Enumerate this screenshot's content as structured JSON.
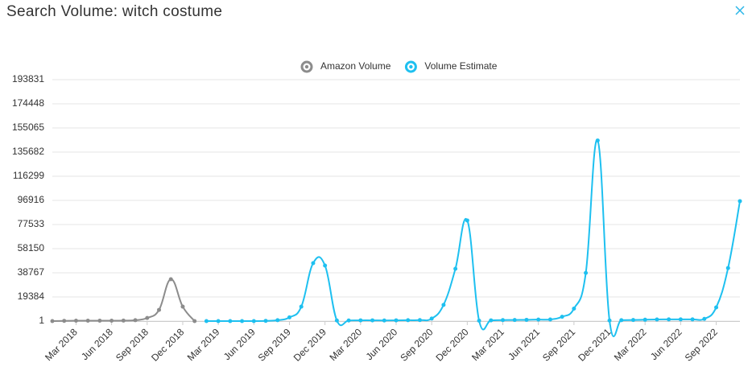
{
  "chart_data": {
    "type": "line",
    "title": "Search Volume: witch costume",
    "categories": [
      null,
      null,
      "Mar 2018",
      null,
      null,
      "Jun 2018",
      null,
      null,
      "Sep 2018",
      null,
      null,
      "Dec 2018",
      null,
      null,
      "Mar 2019",
      null,
      null,
      "Jun 2019",
      null,
      null,
      "Sep 2019",
      null,
      null,
      "Dec 2019",
      null,
      null,
      "Mar 2020",
      null,
      null,
      "Jun 2020",
      null,
      null,
      "Sep 2020",
      null,
      null,
      "Dec 2020",
      null,
      null,
      "Mar 2021",
      null,
      null,
      "Jun 2021",
      null,
      null,
      "Sep 2021",
      null,
      null,
      "Dec 2021",
      null,
      null,
      "Mar 2022",
      null,
      null,
      "Jun 2022",
      null,
      null,
      "Sep 2022",
      null,
      null
    ],
    "series": [
      {
        "name": "Amazon Volume",
        "color": "#8c8c8c",
        "values": [
          1,
          200,
          300,
          300,
          300,
          300,
          400,
          700,
          2500,
          9000,
          33600,
          11600,
          1,
          null,
          null,
          null,
          null,
          null,
          null,
          null,
          null,
          null,
          null,
          null,
          null,
          null,
          null,
          null,
          null,
          null,
          null,
          null,
          null,
          null,
          null,
          null,
          null,
          null,
          null,
          null,
          null,
          null,
          null,
          null,
          null,
          null,
          null,
          null,
          null,
          null,
          null,
          null,
          null,
          null,
          null,
          null,
          null,
          null,
          null
        ]
      },
      {
        "name": "Volume Estimate",
        "color": "#1ec0f0",
        "values": [
          null,
          null,
          null,
          null,
          null,
          null,
          null,
          null,
          null,
          null,
          null,
          null,
          null,
          1,
          1,
          1,
          1,
          1,
          200,
          700,
          3000,
          11600,
          46500,
          44600,
          500,
          500,
          600,
          600,
          500,
          600,
          700,
          800,
          2000,
          13000,
          42000,
          80800,
          300,
          600,
          800,
          900,
          1000,
          1200,
          1300,
          3500,
          10000,
          38700,
          145000,
          500,
          700,
          900,
          1100,
          1300,
          1400,
          1400,
          1400,
          1800,
          11000,
          42600,
          96300
        ]
      }
    ],
    "ylim": [
      1,
      193831
    ],
    "yticks": [
      1,
      19384,
      38767,
      58150,
      77533,
      96916,
      116299,
      135682,
      155065,
      174448,
      193831
    ],
    "grid": true
  }
}
